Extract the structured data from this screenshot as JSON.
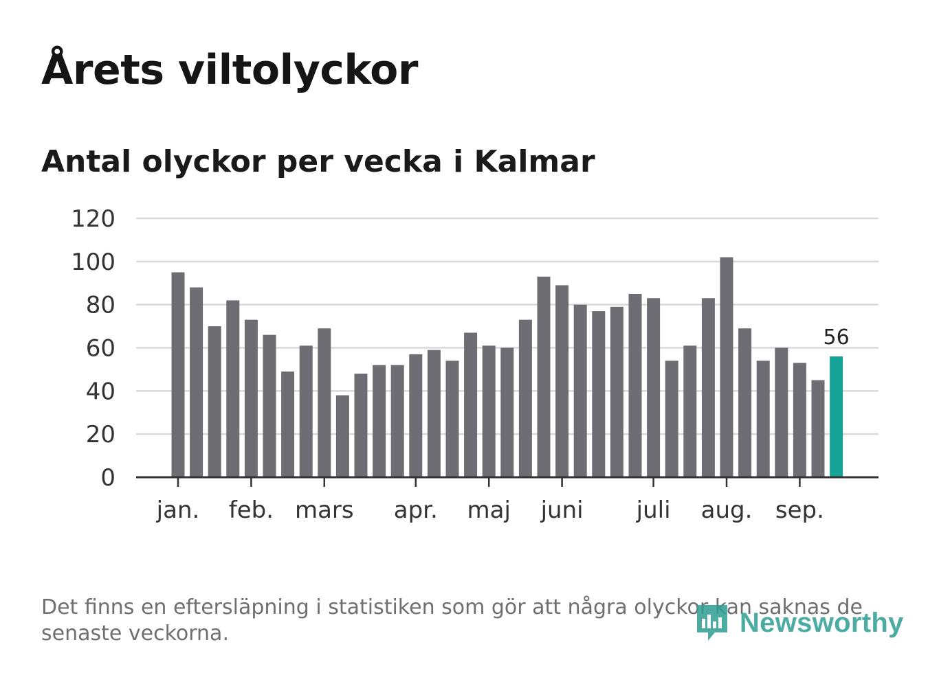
{
  "header": {
    "title": "Årets viltolyckor",
    "subtitle": "Antal olyckor per vecka i Kalmar"
  },
  "footnote": "Det finns en eftersläpning i statistiken som gör att några olyckor kan saknas de senaste veckorna.",
  "logo": {
    "text": "Newsworthy",
    "icon": "newsworthy-logo-icon"
  },
  "colors": {
    "bar": "#6e6d73",
    "highlight": "#14a396",
    "grid": "#d9d9d9",
    "axis": "#333333"
  },
  "chart_data": {
    "type": "bar",
    "title": "Årets viltolyckor",
    "subtitle": "Antal olyckor per vecka i Kalmar",
    "xlabel": "",
    "ylabel": "",
    "ylim": [
      0,
      120
    ],
    "yticks": [
      "0",
      "20",
      "40",
      "60",
      "80",
      "100",
      "120"
    ],
    "month_labels": [
      {
        "label": "jan.",
        "week": 1
      },
      {
        "label": "feb.",
        "week": 5
      },
      {
        "label": "mars",
        "week": 9
      },
      {
        "label": "apr.",
        "week": 14
      },
      {
        "label": "maj",
        "week": 18
      },
      {
        "label": "juni",
        "week": 22
      },
      {
        "label": "juli",
        "week": 27
      },
      {
        "label": "aug.",
        "week": 31
      },
      {
        "label": "sep.",
        "week": 35
      }
    ],
    "weeks": [
      1,
      2,
      3,
      4,
      5,
      6,
      7,
      8,
      9,
      10,
      11,
      12,
      13,
      14,
      15,
      16,
      17,
      18,
      19,
      20,
      21,
      22,
      23,
      24,
      25,
      26,
      27,
      28,
      29,
      30,
      31,
      32,
      33,
      34,
      35,
      36,
      37
    ],
    "values": [
      95,
      88,
      70,
      82,
      73,
      66,
      49,
      61,
      69,
      38,
      48,
      52,
      52,
      57,
      59,
      54,
      67,
      61,
      60,
      73,
      93,
      89,
      80,
      77,
      79,
      85,
      83,
      54,
      61,
      83,
      102,
      69,
      54,
      60,
      53,
      45,
      56
    ],
    "highlight": {
      "week": 37,
      "value": 56,
      "label": "56"
    },
    "grid": true
  }
}
